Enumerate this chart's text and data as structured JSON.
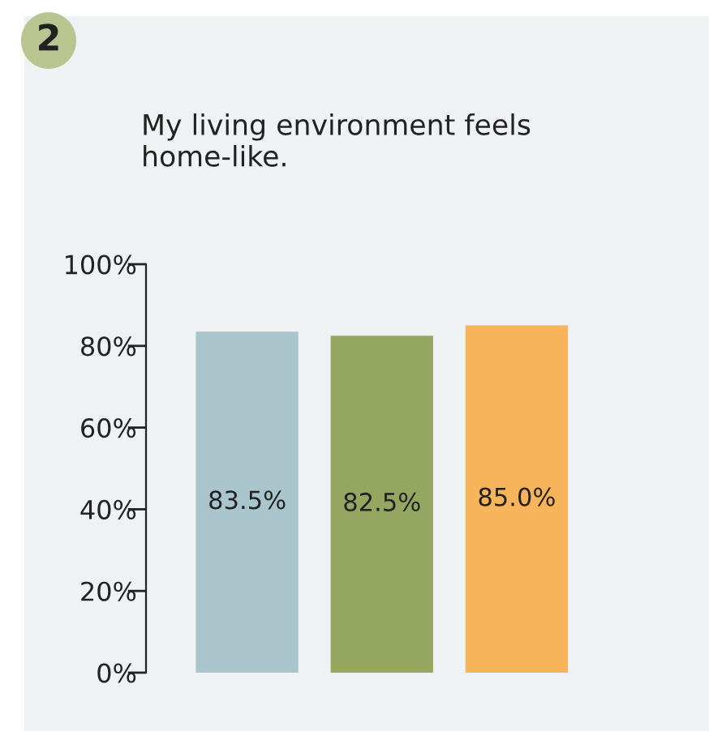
{
  "chart_data": {
    "type": "bar",
    "title": "My living environment feels\nhome-like.",
    "categories": [
      null,
      null,
      null
    ],
    "values": [
      83.5,
      82.5,
      85.0
    ],
    "colors": [
      "#a9c4cb",
      "#95a661",
      "#f7b45a"
    ],
    "value_labels": [
      "83.5%",
      "82.5%",
      "85.0%"
    ],
    "ylim": [
      0,
      100
    ],
    "yticks": [
      {
        "value": 0,
        "label": "0%"
      },
      {
        "value": 20,
        "label": "20%"
      },
      {
        "value": 40,
        "label": "40%"
      },
      {
        "value": 60,
        "label": "60%"
      },
      {
        "value": 80,
        "label": "80%"
      },
      {
        "value": 100,
        "label": "100%"
      }
    ],
    "annotations": [
      "2"
    ]
  }
}
